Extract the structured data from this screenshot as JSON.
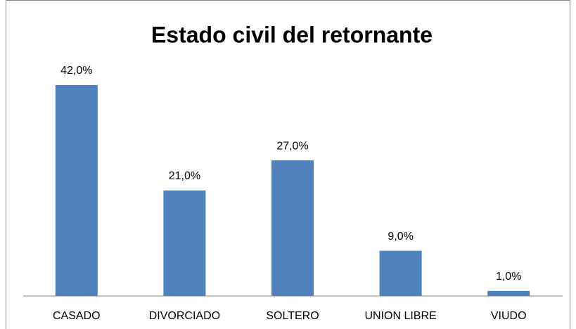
{
  "chart_data": {
    "type": "bar",
    "title": "Estado civil del retornante",
    "categories": [
      "CASADO",
      "DIVORCIADO",
      "SOLTERO",
      "UNION LIBRE",
      "VIUDO"
    ],
    "values": [
      42,
      21,
      27,
      9,
      1
    ],
    "value_labels": [
      "42,0%",
      "21,0%",
      "27,0%",
      "9,0%",
      "1,0%"
    ],
    "color": "#4f81bd"
  }
}
